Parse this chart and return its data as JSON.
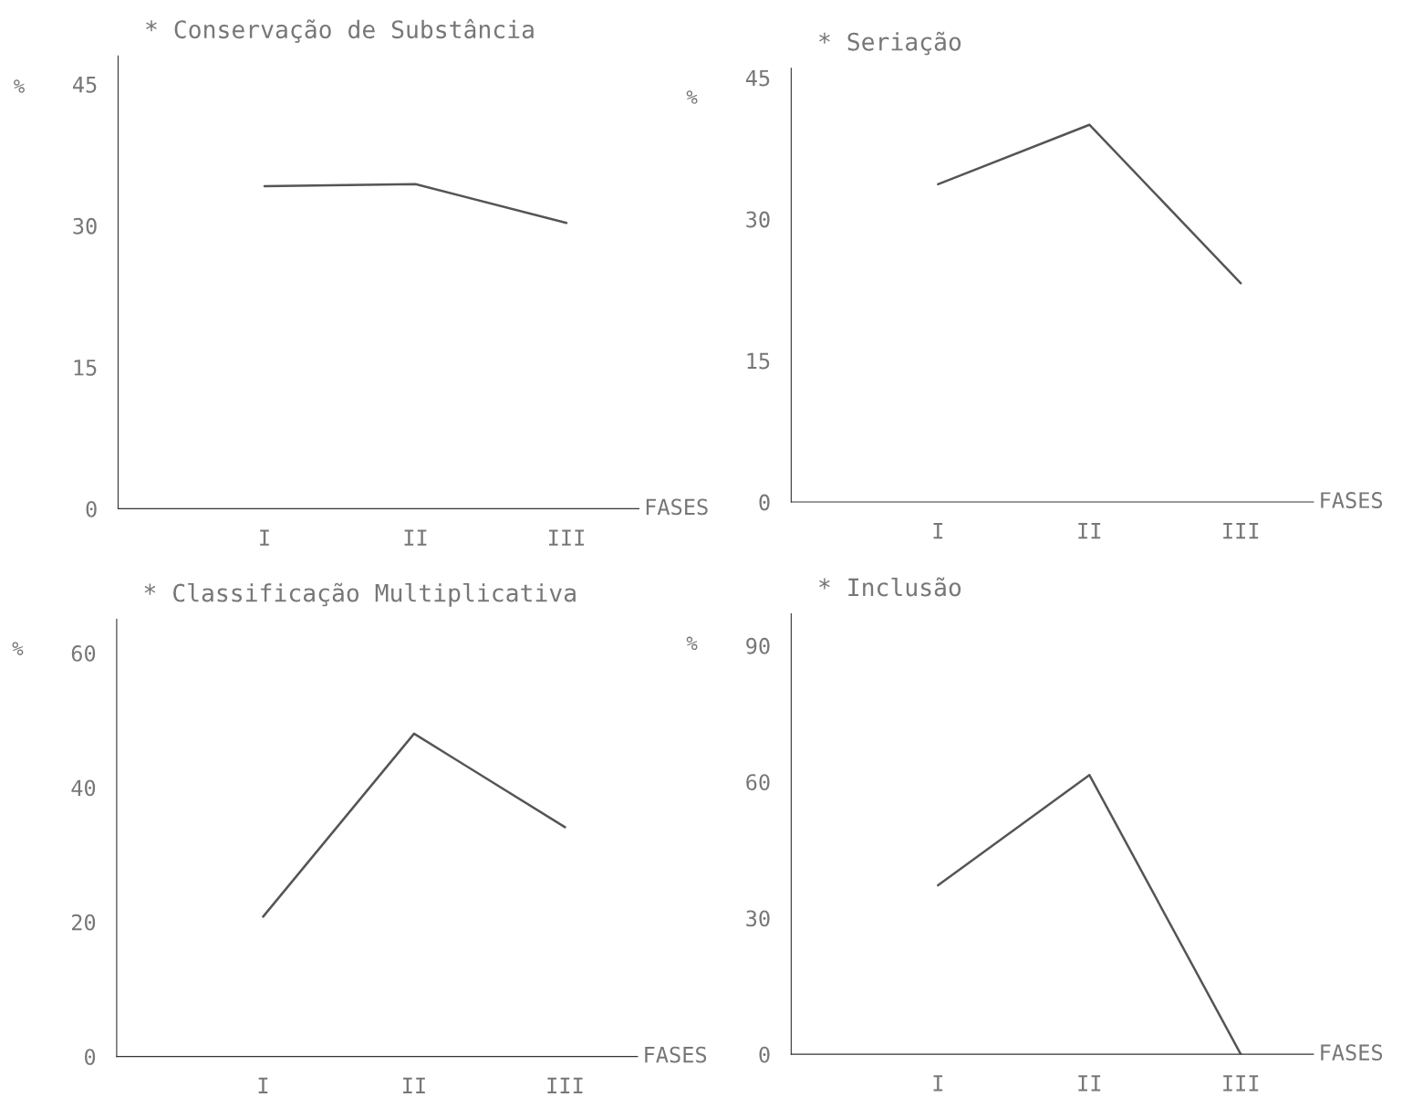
{
  "chart_data": [
    {
      "type": "line",
      "title": "* Conservação de Substância",
      "xlabel": "FASES",
      "ylabel": "%",
      "categories": [
        "I",
        "II",
        "III"
      ],
      "values": [
        34.2,
        34.4,
        30.3
      ],
      "color": "#555555",
      "ylim": [
        0,
        48
      ],
      "yticks": [
        0,
        15,
        30,
        45
      ]
    },
    {
      "type": "line",
      "title": "* Seriação",
      "xlabel": "FASES",
      "ylabel": "%",
      "categories": [
        "I",
        "II",
        "III"
      ],
      "values": [
        33.7,
        40.0,
        23.2
      ],
      "color": "#555555",
      "ylim": [
        0,
        46
      ],
      "yticks": [
        0,
        15,
        30,
        45
      ]
    },
    {
      "type": "line",
      "title": "* Classificação Multiplicativa",
      "xlabel": "FASES",
      "ylabel": "%",
      "categories": [
        "I",
        "II",
        "III"
      ],
      "values": [
        20.8,
        48.0,
        34.1
      ],
      "color": "#555555",
      "ylim": [
        0,
        65
      ],
      "yticks": [
        0,
        20,
        40,
        60
      ]
    },
    {
      "type": "line",
      "title": "* Inclusão",
      "xlabel": "FASES",
      "ylabel": "%",
      "categories": [
        "I",
        "II",
        "III"
      ],
      "values": [
        37.2,
        61.5,
        0
      ],
      "color": "#555555",
      "ylim": [
        0,
        97
      ],
      "yticks": [
        0,
        30,
        60,
        90
      ]
    }
  ]
}
